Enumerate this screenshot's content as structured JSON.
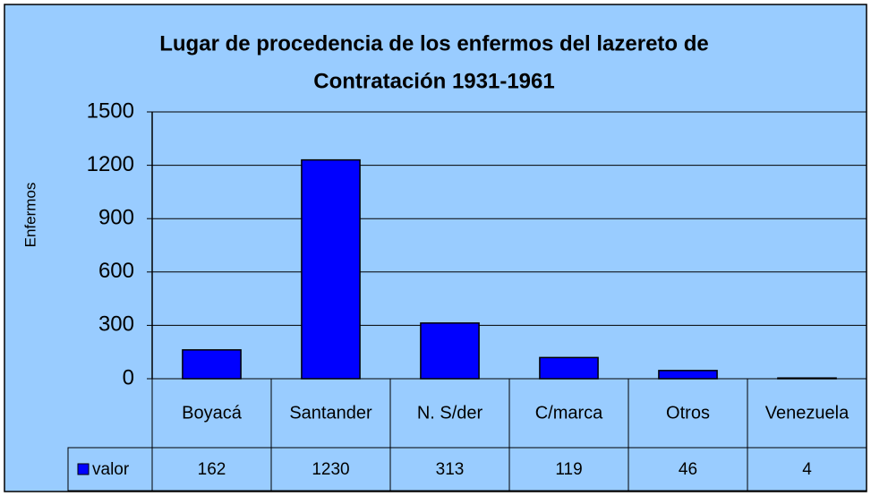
{
  "chart_data": {
    "type": "bar",
    "title": [
      "Lugar de procedencia de los enfermos del lazereto de",
      "Contratación 1931-1961"
    ],
    "y_label": "Enfermos",
    "categories": [
      "Boyacá",
      "Santander",
      "N. S/der",
      "C/marca",
      "Otros",
      "Venezuela"
    ],
    "series": [
      {
        "name": "valor",
        "color": "#0000ff",
        "values": [
          162,
          1230,
          313,
          119,
          46,
          4
        ]
      }
    ],
    "ylim": [
      0,
      1500
    ],
    "yticks": [
      0,
      300,
      600,
      900,
      1200,
      1500
    ],
    "grid": true
  }
}
